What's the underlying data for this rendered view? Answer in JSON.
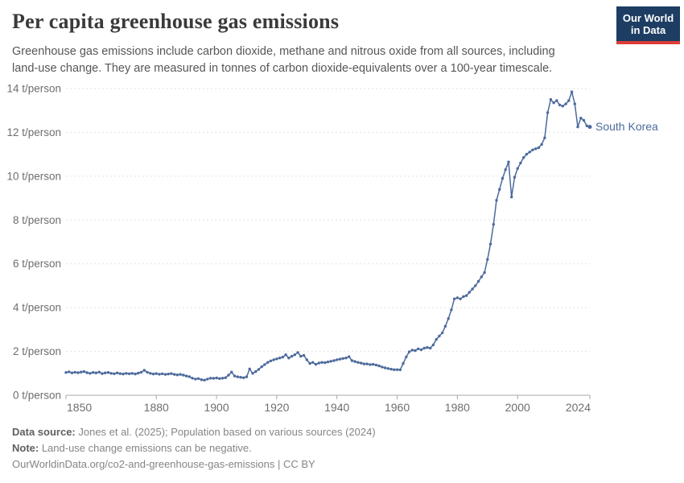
{
  "header": {
    "title": "Per capita greenhouse gas emissions",
    "subtitle_line1": "Greenhouse gas emissions include carbon dioxide, methane and nitrous oxide from all sources, including",
    "subtitle_line2": "land-use change. They are measured in tonnes of carbon dioxide-equivalents over a 100-year timescale.",
    "logo": {
      "line1": "Our World",
      "line2": "in Data"
    }
  },
  "chart_data": {
    "type": "line",
    "title": "Per capita greenhouse gas emissions",
    "unit": "t/person",
    "xlabel": "",
    "ylabel": "",
    "xlim": [
      1850,
      2024
    ],
    "ylim": [
      0,
      14
    ],
    "x_ticks": [
      1850,
      1880,
      1900,
      1920,
      1940,
      1960,
      1980,
      2000,
      2024
    ],
    "y_ticks": [
      0,
      2,
      4,
      6,
      8,
      10,
      12,
      14
    ],
    "y_tick_label_suffix": " t/person",
    "grid": true,
    "legend_position": "end-of-line",
    "series": [
      {
        "name": "South Korea",
        "color": "#4C6A9C",
        "start_year": 1850,
        "values": [
          1.04,
          1.07,
          1.02,
          1.05,
          1.03,
          1.06,
          1.08,
          1.03,
          1.0,
          1.04,
          1.02,
          1.06,
          0.99,
          1.02,
          1.04,
          1.0,
          0.98,
          1.02,
          0.99,
          0.97,
          1.0,
          0.98,
          1.0,
          0.97,
          1.01,
          1.05,
          1.14,
          1.05,
          1.0,
          0.97,
          0.99,
          0.96,
          0.98,
          0.95,
          0.97,
          0.99,
          0.95,
          0.93,
          0.95,
          0.92,
          0.88,
          0.85,
          0.78,
          0.74,
          0.76,
          0.71,
          0.69,
          0.74,
          0.78,
          0.77,
          0.79,
          0.76,
          0.78,
          0.8,
          0.92,
          1.06,
          0.88,
          0.84,
          0.82,
          0.8,
          0.84,
          1.2,
          1.0,
          1.08,
          1.18,
          1.3,
          1.4,
          1.5,
          1.57,
          1.62,
          1.66,
          1.7,
          1.74,
          1.85,
          1.7,
          1.78,
          1.85,
          1.95,
          1.78,
          1.82,
          1.62,
          1.45,
          1.5,
          1.41,
          1.47,
          1.5,
          1.49,
          1.52,
          1.55,
          1.58,
          1.62,
          1.65,
          1.68,
          1.7,
          1.76,
          1.58,
          1.54,
          1.5,
          1.47,
          1.43,
          1.43,
          1.4,
          1.41,
          1.38,
          1.34,
          1.29,
          1.25,
          1.22,
          1.19,
          1.17,
          1.17,
          1.16,
          1.45,
          1.75,
          1.98,
          2.06,
          2.04,
          2.12,
          2.08,
          2.15,
          2.18,
          2.15,
          2.3,
          2.55,
          2.7,
          2.85,
          3.15,
          3.5,
          3.9,
          4.4,
          4.45,
          4.4,
          4.5,
          4.55,
          4.7,
          4.85,
          5.0,
          5.2,
          5.4,
          5.6,
          6.2,
          6.9,
          7.8,
          8.9,
          9.4,
          9.9,
          10.3,
          10.65,
          9.05,
          9.95,
          10.35,
          10.6,
          10.85,
          11.0,
          11.1,
          11.2,
          11.25,
          11.3,
          11.45,
          11.75,
          12.9,
          13.5,
          13.35,
          13.45,
          13.25,
          13.2,
          13.3,
          13.45,
          13.85,
          13.3,
          12.25,
          12.65,
          12.55,
          12.3,
          12.25
        ]
      }
    ]
  },
  "footer": {
    "data_source_label": "Data source:",
    "data_source_text": " Jones et al. (2025); Population based on various sources (2024)",
    "note_label": "Note:",
    "note_text": " Land-use change emissions can be negative.",
    "url_text": "OurWorldinData.org/co2-and-greenhouse-gas-emissions",
    "license_text": " | CC BY"
  },
  "colors": {
    "line": "#4C6A9C",
    "entity_label": "#4C6A9C",
    "grid": "#e2e2e2",
    "axis": "#a8a8a8",
    "tick_label": "#6e6e6e",
    "logo_bg": "#1d3d63",
    "logo_accent": "#dc3e36"
  }
}
